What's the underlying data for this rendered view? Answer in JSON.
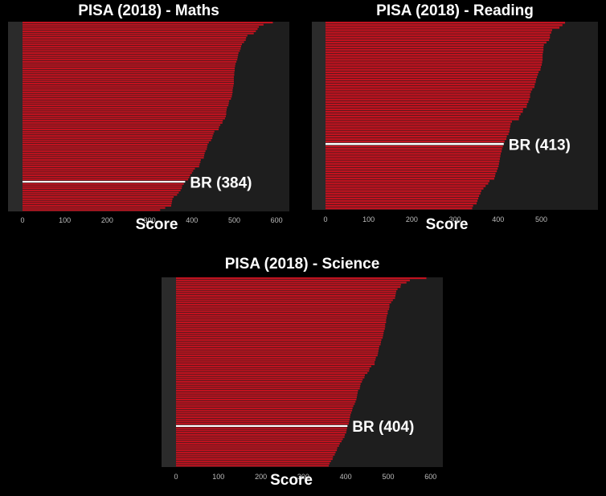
{
  "colors": {
    "background": "#000000",
    "plot_background": "#1e1e1e",
    "left_strip": "#2b2b2b",
    "bar": "#c1121f",
    "bar_gap": "#5a0a0f",
    "highlight": "#ffffff",
    "tick_text": "#bdbdbd"
  },
  "chart_data": [
    {
      "type": "bar",
      "orientation": "horizontal",
      "title": "PISA (2018) - Maths",
      "xlabel": "Score",
      "ylabel": "",
      "xlim": [
        0,
        620
      ],
      "xticks": [
        "0",
        "100",
        "200",
        "300",
        "400",
        "500",
        "600"
      ],
      "grid": false,
      "sorted": "descending",
      "values": [
        591,
        569,
        558,
        555,
        551,
        546,
        531,
        528,
        527,
        523,
        518,
        516,
        515,
        513,
        510,
        509,
        508,
        507,
        505,
        503,
        502,
        501,
        501,
        500,
        500,
        499,
        499,
        499,
        499,
        498,
        497,
        496,
        496,
        495,
        494,
        492,
        488,
        487,
        486,
        483,
        482,
        481,
        481,
        480,
        478,
        473,
        472,
        467,
        464,
        463,
        453,
        451,
        449,
        448,
        445,
        440,
        437,
        436,
        435,
        432,
        430,
        429,
        428,
        421,
        420,
        418,
        417,
        407,
        403,
        400,
        396,
        394,
        391,
        384,
        381,
        377,
        376,
        373,
        369,
        365,
        357,
        354,
        353,
        352,
        351,
        337,
        325
      ],
      "highlight": {
        "label": "BR (384)",
        "value": 384
      }
    },
    {
      "type": "bar",
      "orientation": "horizontal",
      "title": "PISA (2018) - Reading",
      "xlabel": "Score",
      "ylabel": "",
      "xlim": [
        0,
        580
      ],
      "xticks": [
        "0",
        "100",
        "200",
        "300",
        "400",
        "500"
      ],
      "grid": false,
      "sorted": "descending",
      "values": [
        555,
        549,
        542,
        525,
        523,
        520,
        520,
        518,
        512,
        506,
        505,
        505,
        504,
        503,
        503,
        503,
        502,
        501,
        499,
        498,
        494,
        492,
        490,
        488,
        487,
        485,
        484,
        479,
        476,
        474,
        474,
        472,
        470,
        467,
        466,
        458,
        457,
        452,
        449,
        448,
        432,
        429,
        428,
        427,
        426,
        424,
        420,
        419,
        415,
        413,
        411,
        409,
        408,
        406,
        405,
        404,
        403,
        402,
        401,
        399,
        397,
        394,
        393,
        391,
        380,
        377,
        371,
        366,
        361,
        359,
        356,
        354,
        352,
        350,
        342,
        340
      ],
      "highlight": {
        "label": "BR (413)",
        "value": 413
      }
    },
    {
      "type": "bar",
      "orientation": "horizontal",
      "title": "PISA (2018) - Science",
      "xlabel": "Score",
      "ylabel": "",
      "xlim": [
        0,
        600
      ],
      "xticks": [
        "0",
        "100",
        "200",
        "300",
        "400",
        "500",
        "600"
      ],
      "grid": false,
      "sorted": "descending",
      "values": [
        590,
        551,
        543,
        530,
        529,
        522,
        519,
        518,
        517,
        516,
        511,
        507,
        503,
        503,
        502,
        499,
        499,
        497,
        496,
        495,
        495,
        493,
        493,
        492,
        490,
        489,
        488,
        487,
        484,
        483,
        482,
        479,
        478,
        477,
        476,
        475,
        471,
        470,
        468,
        468,
        460,
        456,
        455,
        451,
        445,
        444,
        440,
        438,
        435,
        434,
        433,
        429,
        428,
        427,
        426,
        425,
        423,
        421,
        418,
        416,
        415,
        413,
        411,
        410,
        409,
        408,
        407,
        404,
        403,
        402,
        401,
        398,
        397,
        393,
        390,
        386,
        384,
        380,
        379,
        376,
        374,
        370,
        369,
        365,
        362,
        360
      ],
      "highlight": {
        "label": "BR (404)",
        "value": 404
      }
    }
  ]
}
